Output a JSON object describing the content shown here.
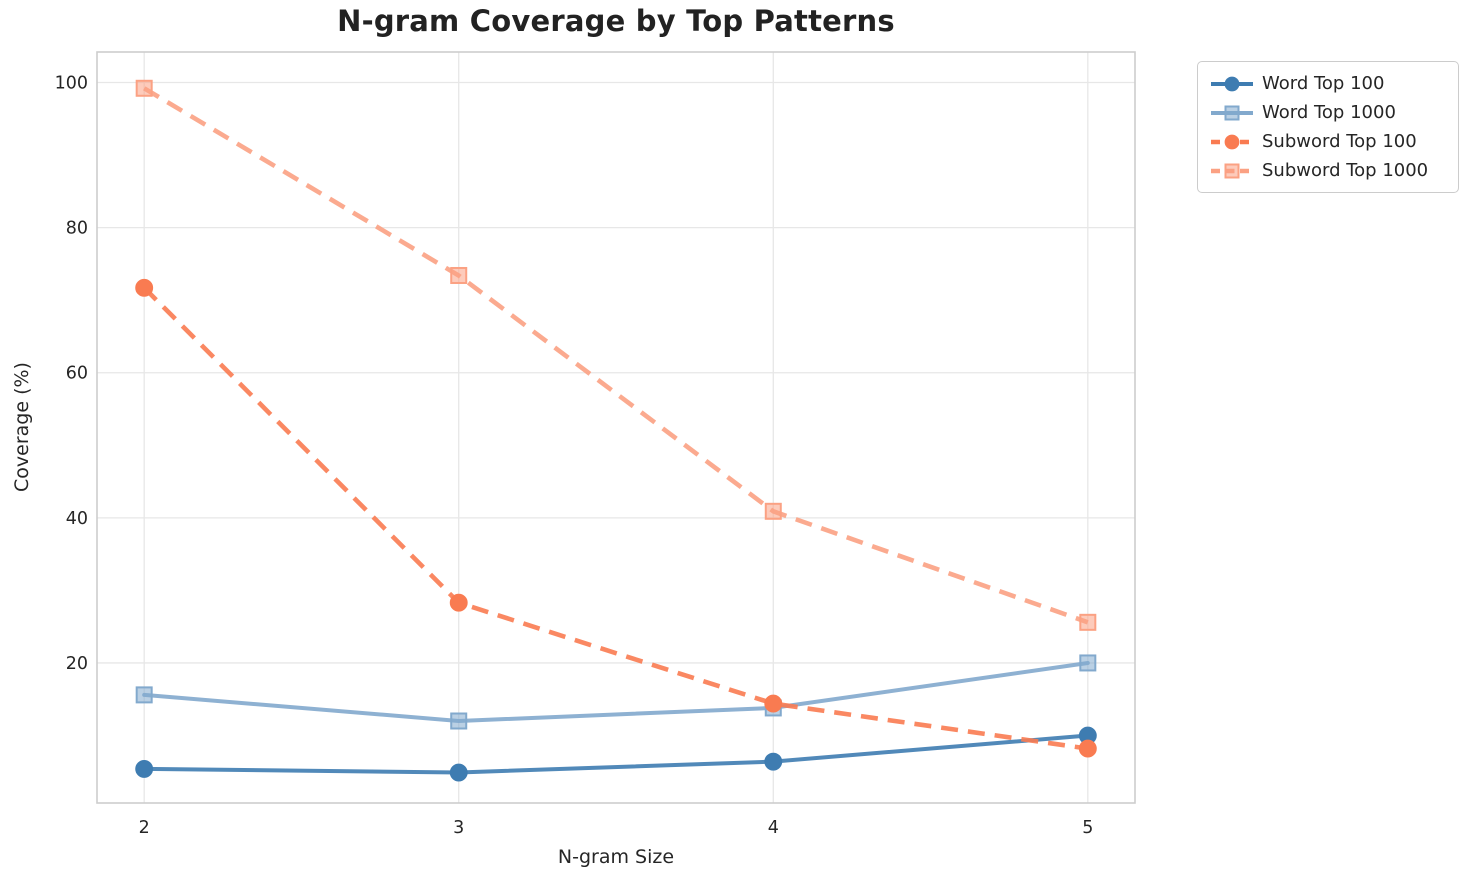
{
  "chart_data": {
    "type": "line",
    "title": "N-gram Coverage by Top Patterns",
    "xlabel": "N-gram Size",
    "ylabel": "Coverage (%)",
    "x": [
      2,
      3,
      4,
      5
    ],
    "series": [
      {
        "name": "Word Top 100",
        "color": "#3e7cb1",
        "line_style": "solid",
        "marker": "circle",
        "values": [
          5.4,
          4.9,
          6.4,
          10.0
        ]
      },
      {
        "name": "Word Top 1000",
        "color": "#82a9cd",
        "line_style": "solid",
        "marker": "square",
        "values": [
          15.6,
          12.0,
          13.8,
          20.0
        ]
      },
      {
        "name": "Subword Top 100",
        "color": "#f97b51",
        "line_style": "dashed",
        "marker": "circle",
        "values": [
          71.7,
          28.3,
          14.4,
          8.2
        ]
      },
      {
        "name": "Subword Top 1000",
        "color": "#fba183",
        "line_style": "dashed",
        "marker": "square",
        "values": [
          99.2,
          73.4,
          40.9,
          25.6
        ]
      }
    ],
    "xticks": [
      "2",
      "3",
      "4",
      "5"
    ],
    "yticks": [
      "20",
      "40",
      "60",
      "80",
      "100"
    ],
    "xtick_values": [
      2,
      3,
      4,
      5
    ],
    "ytick_values": [
      20,
      40,
      60,
      80,
      100
    ],
    "xlim": [
      1.85,
      5.15
    ],
    "ylim": [
      0.7,
      104.2
    ],
    "grid": true,
    "legend_position": "outside-top-right",
    "style": {
      "background": "#ffffff",
      "text_color": "#262626",
      "title_color": "#222222",
      "grid_color": "#e7e7e7",
      "spine_color": "#cdcdcd",
      "legend_border_color": "#cccccc"
    }
  }
}
